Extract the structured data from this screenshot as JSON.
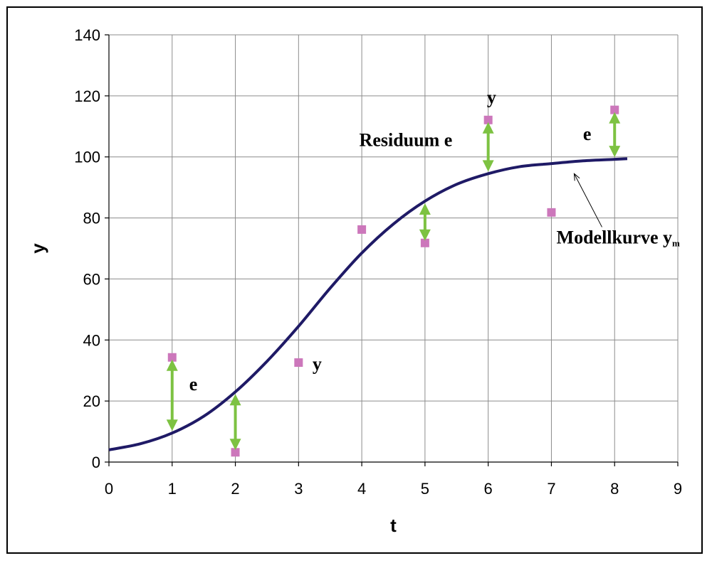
{
  "chart_data": {
    "type": "scatter",
    "title": "",
    "xlabel": "t",
    "ylabel": "y",
    "xlim": [
      0,
      9
    ],
    "ylim": [
      0,
      140
    ],
    "x_ticks": [
      "0",
      "1",
      "2",
      "3",
      "4",
      "5",
      "6",
      "7",
      "8",
      "9"
    ],
    "y_ticks": [
      "0",
      "20",
      "40",
      "60",
      "80",
      "100",
      "120",
      "140"
    ],
    "grid": true,
    "points": {
      "x": [
        1,
        2,
        3,
        4,
        5,
        6,
        7,
        8
      ],
      "y": [
        34.3,
        3.2,
        32.6,
        76.2,
        71.8,
        112.1,
        81.8,
        115.4
      ],
      "color": "#cc77bb"
    },
    "model_curve": {
      "x": [
        0,
        0.5,
        1,
        1.5,
        2,
        2.5,
        3,
        3.5,
        4,
        4.5,
        5,
        5.5,
        6,
        6.5,
        7,
        7.5,
        8,
        8.2
      ],
      "y": [
        4,
        6,
        9.5,
        15,
        23,
        33,
        44.5,
        57,
        68.5,
        78,
        85.5,
        91,
        94.5,
        96.8,
        97.8,
        98.7,
        99.2,
        99.4
      ],
      "color": "#1f1a66"
    },
    "residuals": [
      {
        "x": 1,
        "from": 34.3,
        "to": 9.5
      },
      {
        "x": 2,
        "from": 23,
        "to": 3.2
      },
      {
        "x": 5,
        "from": 85.5,
        "to": 71.8
      },
      {
        "x": 6,
        "from": 112.1,
        "to": 94.5
      },
      {
        "x": 8,
        "from": 115.4,
        "to": 99.2
      }
    ],
    "residual_color": "#7dc242",
    "annotations": [
      {
        "text": "e",
        "x": 1.27,
        "y": 23.5
      },
      {
        "text": "y",
        "x": 3.22,
        "y": 30.2
      },
      {
        "text": "Residuum e",
        "x": 3.96,
        "y": 103.5
      },
      {
        "text": "y",
        "x": 5.98,
        "y": 117.5
      },
      {
        "text": "e",
        "x": 7.5,
        "y": 105.5
      },
      {
        "text": "Modellkurve y",
        "x": 7.08,
        "y": 71.6,
        "subscript": "m"
      }
    ],
    "pointer_arrow": {
      "from": [
        7.8,
        77
      ],
      "to": [
        7.36,
        94.5
      ]
    }
  }
}
